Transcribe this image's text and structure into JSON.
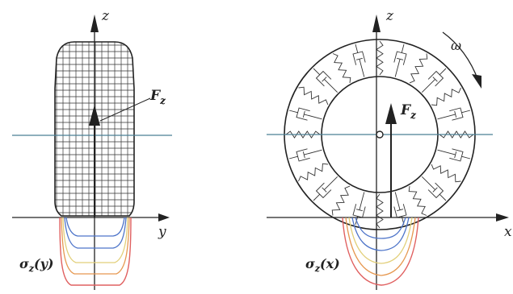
{
  "left": {
    "axis_z": "z",
    "axis_y": "y",
    "force": "F",
    "force_sub": "z",
    "stress": "σ",
    "stress_sub": "z",
    "stress_arg": "(y)"
  },
  "right": {
    "axis_z": "z",
    "axis_x": "x",
    "force": "F",
    "force_sub": "z",
    "omega": "ω",
    "stress": "σ",
    "stress_sub": "z",
    "stress_arg": "(x)"
  },
  "colors": {
    "axis": "#222222",
    "guide": "#4a7f95",
    "curve_blue": "#4d74c9",
    "curve_orange": "#e69850",
    "curve_yellow": "#e2cf79",
    "curve_red": "#e06060"
  }
}
